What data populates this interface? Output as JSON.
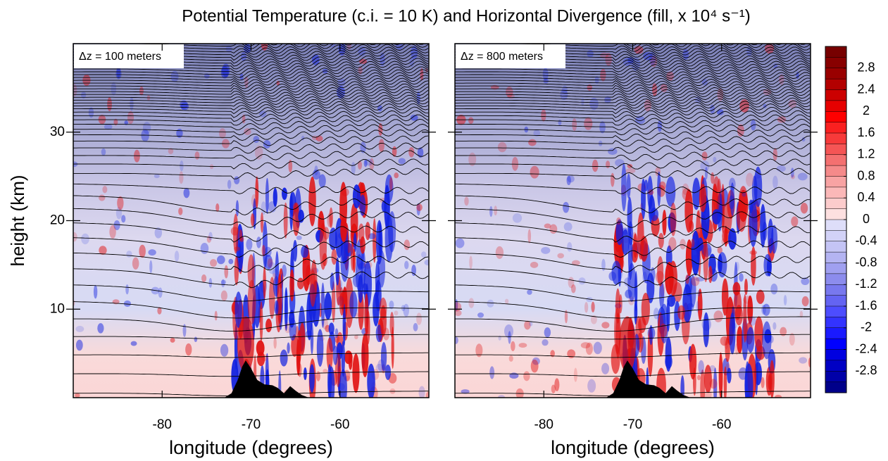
{
  "title": "Potential Temperature (c.i. = 10 K) and Horizontal Divergence (fill, x 10⁴ s⁻¹)",
  "chart_data": [
    {
      "type": "contour",
      "annotation": "Δz = 100 meters",
      "xlabel": "longitude (degrees)",
      "ylabel": "height (km)",
      "xlim": [
        -90,
        -50
      ],
      "xticks": [
        -80,
        -70,
        -60
      ],
      "ylim": [
        0,
        40
      ],
      "yticks": [
        10,
        20,
        30
      ]
    },
    {
      "type": "contour",
      "annotation": "Δz = 800 meters",
      "xlabel": "longitude (degrees)",
      "xlim": [
        -90,
        -50
      ],
      "xticks": [
        -80,
        -70,
        -60
      ],
      "ylim": [
        0,
        40
      ],
      "yticks": [
        10,
        20,
        30
      ]
    },
    {
      "type": "colorbar",
      "clim": [
        -3.2,
        3.2
      ],
      "ticks": [
        2.8,
        2.4,
        2,
        1.6,
        1.2,
        0.8,
        0.4,
        0,
        -0.4,
        -0.8,
        -1.2,
        -1.6,
        -2,
        -2.4,
        -2.8
      ],
      "colors": [
        "#00008a",
        "#0000a8",
        "#0000c4",
        "#0000e0",
        "#0000ff",
        "#1a1aff",
        "#3333ff",
        "#4d4dff",
        "#6464f2",
        "#7878ee",
        "#8c8ced",
        "#a0a0f0",
        "#b4b4f2",
        "#c4c4f5",
        "#d2d2f7",
        "#dedef9",
        "#fde0e0",
        "#fccccc",
        "#fbb8b8",
        "#f8a3a3",
        "#f58a8a",
        "#f47070",
        "#f55555",
        "#f73a3a",
        "#fa2020",
        "#ff0000",
        "#e60000",
        "#cc0000",
        "#b30000",
        "#990000",
        "#880000",
        "#770000"
      ]
    }
  ]
}
